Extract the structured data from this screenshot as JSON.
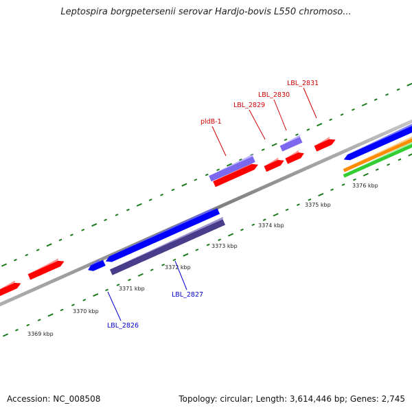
{
  "title": "Leptospira borgpetersenii serovar Hardjo-bovis L550 chromoso...",
  "footer": {
    "accession": "Accession: NC_008508",
    "summary": "Topology: circular; Length: 3,614,446 bp; Genes: 2,745"
  },
  "colors": {
    "backbone": "#8a8a8a",
    "forward_gene": "#ff0000",
    "reverse_gene": "#0000ff",
    "light_purple": "#7b68ee",
    "dark_purple": "#483d8b",
    "orange": "#ff8c00",
    "green": "#32cd32",
    "tick": "#1a7a1a",
    "forward_label": "#cc0000",
    "reverse_label": "#0000cc"
  },
  "ticks": [
    {
      "label": "3369 kbp"
    },
    {
      "label": "3370 kbp"
    },
    {
      "label": "3371 kbp"
    },
    {
      "label": "3372 kbp"
    },
    {
      "label": "3373 kbp"
    },
    {
      "label": "3374 kbp"
    },
    {
      "label": "3375 kbp"
    },
    {
      "label": "3376 kbp"
    }
  ],
  "gene_labels": [
    {
      "name": "LBL_2831",
      "strand": "forward"
    },
    {
      "name": "LBL_2830",
      "strand": "forward"
    },
    {
      "name": "LBL_2829",
      "strand": "forward"
    },
    {
      "name": "pldB-1",
      "strand": "forward"
    },
    {
      "name": "LBL_2827",
      "strand": "reverse"
    },
    {
      "name": "LBL_2826",
      "strand": "reverse"
    }
  ]
}
